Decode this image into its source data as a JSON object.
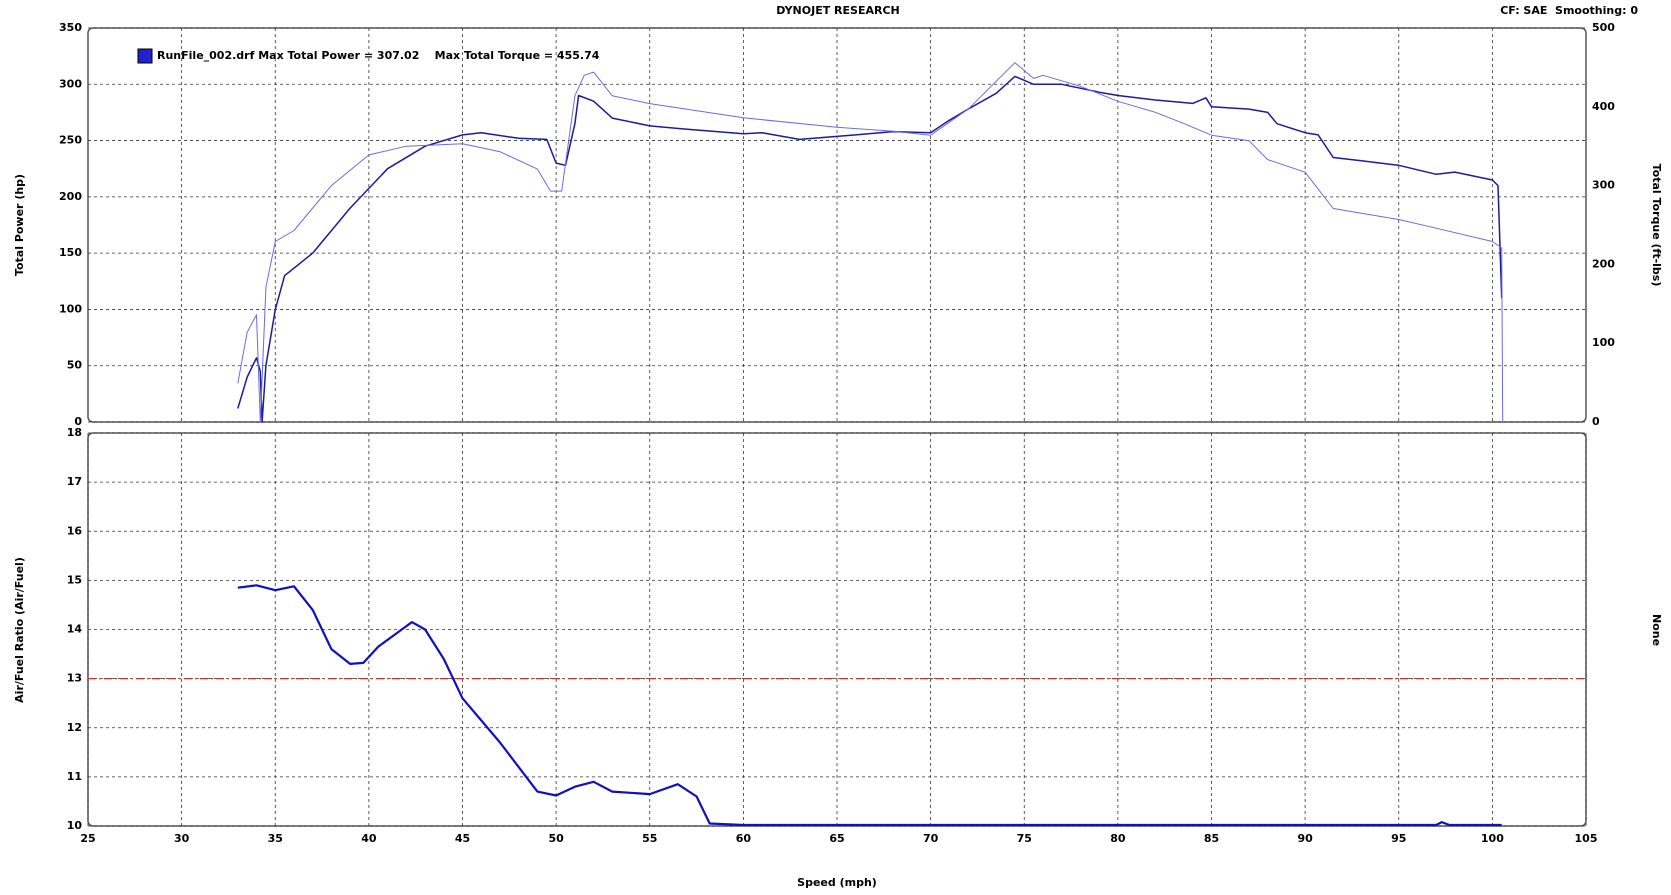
{
  "header": {
    "title": "DYNOJET RESEARCH",
    "settings": "CF: SAE  Smoothing: 0"
  },
  "chart_data": [
    {
      "type": "line",
      "legend": "RunFile_002.drf Max Total Power = 307.02    Max Total Torque = 455.74",
      "y_label": "Total Power (hp)",
      "y2_label": "Total Torque (ft-lbs)",
      "xlim": [
        25,
        105
      ],
      "xticks": [
        30,
        35,
        40,
        45,
        50,
        55,
        60,
        65,
        70,
        75,
        80,
        85,
        90,
        95,
        100
      ],
      "ylim": [
        0,
        350
      ],
      "yticks": [
        0,
        50,
        100,
        150,
        200,
        250,
        300,
        350
      ],
      "y2lim": [
        0,
        500
      ],
      "y2ticks": [
        0,
        100,
        200,
        300,
        400,
        500
      ],
      "grid": true,
      "series": [
        {
          "color": "#1c1c9a",
          "x": [
            33,
            33.5,
            34,
            34.2,
            34.3,
            34.5,
            35,
            35.5,
            37,
            39,
            41,
            43,
            45,
            46,
            48,
            49.5,
            50,
            50.5,
            51,
            51.2,
            52,
            53,
            55,
            57,
            60,
            61,
            63,
            66,
            68,
            70,
            71,
            72,
            73.5,
            74.5,
            75.5,
            77,
            79,
            80,
            82,
            84,
            84.7,
            85,
            87,
            88,
            88.5,
            90,
            90.7,
            91.5,
            93,
            95,
            97,
            98,
            100,
            100.3,
            100.5
          ],
          "values": [
            12,
            40,
            57,
            45,
            0,
            50,
            100,
            130,
            150,
            190,
            225,
            245,
            255,
            257,
            252,
            251,
            230,
            228,
            265,
            290,
            285,
            270,
            263,
            260,
            256,
            257,
            251,
            255,
            258,
            257,
            268,
            278,
            292,
            307,
            300,
            300,
            293,
            290,
            286,
            283,
            288,
            280,
            278,
            275,
            265,
            257,
            255,
            235,
            232,
            228,
            220,
            222,
            215,
            210,
            110
          ]
        },
        {
          "color": "#6a6ae6",
          "axis": "y2",
          "x": [
            33,
            33.5,
            34,
            34.2,
            34.5,
            35,
            36,
            38,
            40,
            42,
            45,
            47,
            49,
            49.7,
            50.3,
            51,
            51.5,
            52,
            53,
            55,
            60,
            65,
            68,
            70,
            72,
            74.5,
            75.5,
            76,
            78,
            80,
            82,
            83.5,
            85,
            87,
            88,
            90,
            91.5,
            95,
            97,
            100,
            100.5,
            100.55
          ],
          "values": [
            49,
            114,
            136,
            0,
            171,
            229,
            243,
            300,
            339,
            350,
            353,
            343,
            321,
            293,
            293,
            414,
            440,
            444,
            414,
            404,
            386,
            374,
            369,
            364,
            397,
            456,
            436,
            440,
            426,
            407,
            393,
            379,
            364,
            357,
            333,
            317,
            271,
            257,
            246,
            229,
            221,
            0
          ]
        }
      ]
    },
    {
      "type": "line",
      "y_label": "Air/Fuel Ratio (Air/Fuel)",
      "y2_label": "None",
      "x_label": "Speed (mph)",
      "xlim": [
        25,
        105
      ],
      "xticks": [
        25,
        30,
        35,
        40,
        45,
        50,
        55,
        60,
        65,
        70,
        75,
        80,
        85,
        90,
        95,
        100,
        105
      ],
      "ylim": [
        10,
        18
      ],
      "yticks": [
        10,
        11,
        12,
        13,
        14,
        15,
        16,
        17,
        18
      ],
      "grid": true,
      "reference_line": {
        "value": 13,
        "color": "#cc3333"
      },
      "series": [
        {
          "color": "#1010c0",
          "x": [
            33,
            34,
            35,
            36,
            37,
            38,
            39,
            39.7,
            40.5,
            42.3,
            43,
            44,
            45,
            47,
            48.5,
            49,
            50,
            51,
            52,
            53,
            55,
            56.5,
            57.5,
            58.2,
            60,
            97,
            97.3,
            97.7,
            100.5
          ],
          "values": [
            14.85,
            14.9,
            14.8,
            14.88,
            14.4,
            13.6,
            13.3,
            13.32,
            13.65,
            14.15,
            14.0,
            13.4,
            12.6,
            11.7,
            10.95,
            10.7,
            10.62,
            10.8,
            10.9,
            10.7,
            10.65,
            10.85,
            10.6,
            10.05,
            10.02,
            10.02,
            10.08,
            10.02,
            10.02
          ]
        }
      ]
    }
  ]
}
